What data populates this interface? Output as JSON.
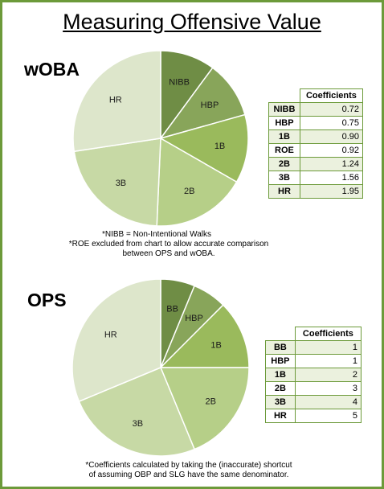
{
  "title": "Measuring Offensive Value",
  "colors": {
    "border": "#6c9a3a",
    "stroke": "#ffffff"
  },
  "chart_data": [
    {
      "type": "pie",
      "title": "wOBA",
      "categories": [
        "NIBB",
        "HBP",
        "1B",
        "2B",
        "3B",
        "HR"
      ],
      "values": [
        0.72,
        0.75,
        0.9,
        1.24,
        1.56,
        1.95
      ],
      "colors": [
        "#6f8d45",
        "#88a55a",
        "#9aba5c",
        "#b6cf88",
        "#c7d9a5",
        "#dde6cb"
      ],
      "table_header": "Coefficients",
      "table_rows": [
        {
          "label": "NIBB",
          "value": "0.72"
        },
        {
          "label": "HBP",
          "value": "0.75"
        },
        {
          "label": "1B",
          "value": "0.90"
        },
        {
          "label": "ROE",
          "value": "0.92"
        },
        {
          "label": "2B",
          "value": "1.24"
        },
        {
          "label": "3B",
          "value": "1.56"
        },
        {
          "label": "HR",
          "value": "1.95"
        }
      ],
      "notes": [
        "*NIBB = Non-Intentional Walks",
        "*ROE excluded from chart to allow accurate comparison",
        "between OPS and wOBA."
      ]
    },
    {
      "type": "pie",
      "title": "OPS",
      "categories": [
        "BB",
        "HBP",
        "1B",
        "2B",
        "3B",
        "HR"
      ],
      "values": [
        1,
        1,
        2,
        3,
        4,
        5
      ],
      "colors": [
        "#6f8d45",
        "#88a55a",
        "#9aba5c",
        "#b6cf88",
        "#c7d9a5",
        "#dde6cb"
      ],
      "table_header": "Coefficients",
      "table_rows": [
        {
          "label": "BB",
          "value": "1"
        },
        {
          "label": "HBP",
          "value": "1"
        },
        {
          "label": "1B",
          "value": "2"
        },
        {
          "label": "2B",
          "value": "3"
        },
        {
          "label": "3B",
          "value": "4"
        },
        {
          "label": "HR",
          "value": "5"
        }
      ],
      "notes": [
        "*Coefficients calculated by taking the (inaccurate) shortcut",
        "of assuming OBP and SLG have the same denominator."
      ]
    }
  ]
}
